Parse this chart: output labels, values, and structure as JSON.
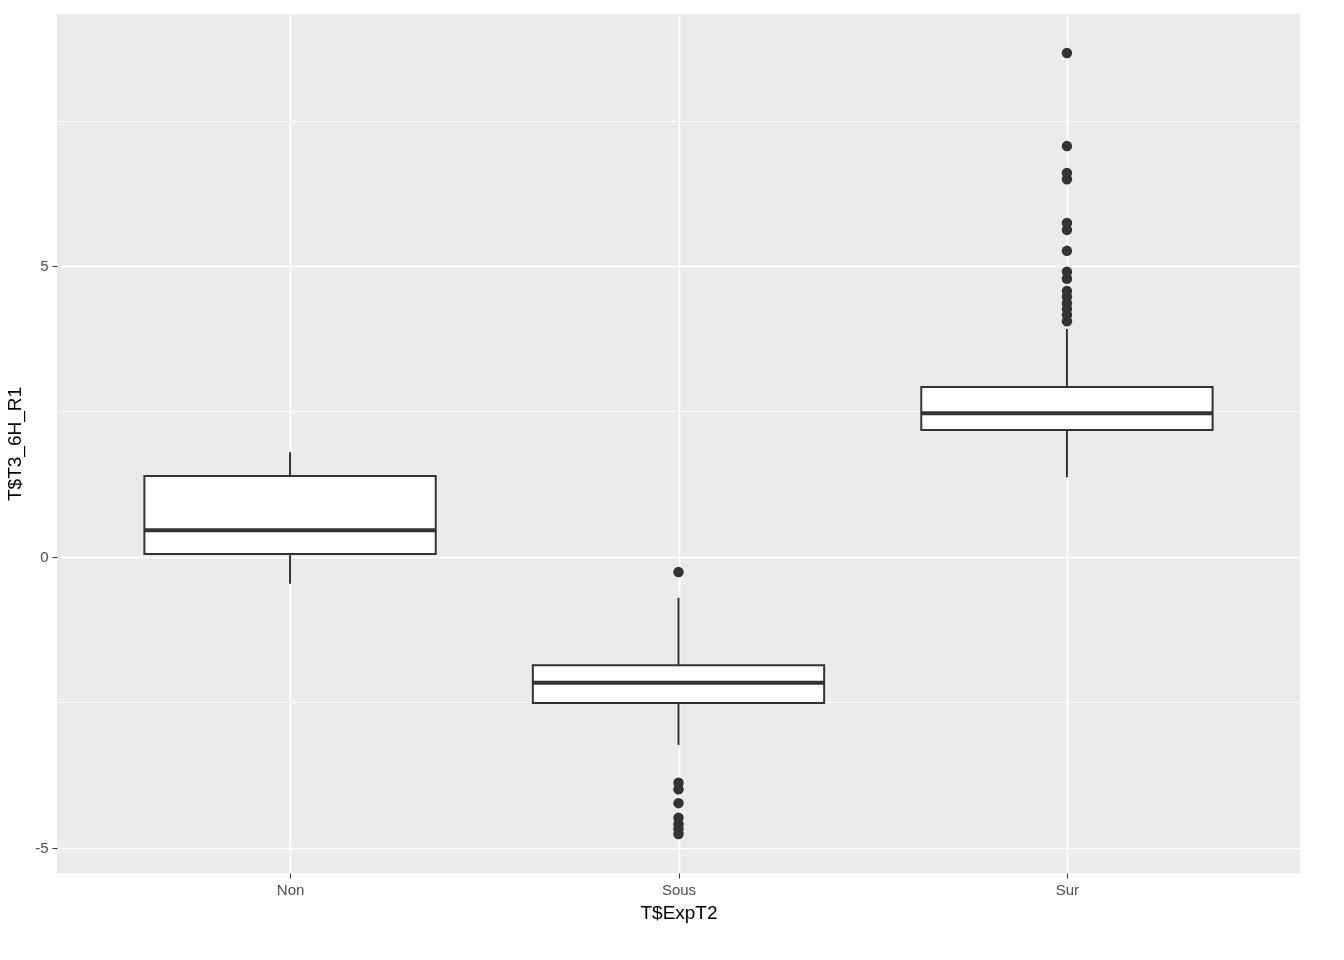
{
  "chart_data": {
    "type": "box",
    "xlabel": "T$ExpT2",
    "ylabel": "T$T3_6H_R1",
    "categories": [
      "Non",
      "Sous",
      "Sur"
    ],
    "boxes": [
      {
        "low": -0.46,
        "q1": 0.05,
        "median": 0.46,
        "q3": 1.39,
        "high": 1.8
      },
      {
        "low": -3.23,
        "q1": -2.51,
        "median": -2.16,
        "q3": -1.86,
        "high": -0.7,
        "outliers": [
          -0.26,
          -3.88,
          -3.99,
          -4.23,
          -4.48,
          -4.59,
          -4.67,
          -4.76
        ]
      },
      {
        "low": 1.37,
        "q1": 2.18,
        "median": 2.47,
        "q3": 2.92,
        "high": 3.92,
        "outliers": [
          8.66,
          7.06,
          6.6,
          6.49,
          5.74,
          5.62,
          5.26,
          4.9,
          4.78,
          4.57,
          4.47,
          4.36,
          4.26,
          4.16,
          4.05
        ]
      }
    ],
    "ylim": [
      -5.43,
      9.33
    ],
    "yticks": [
      -5,
      {
        "value": -2.5,
        "label": null
      },
      0,
      {
        "value": 2.5,
        "label": null
      },
      5,
      {
        "value": 7.5,
        "label": null
      }
    ],
    "grid": true
  }
}
